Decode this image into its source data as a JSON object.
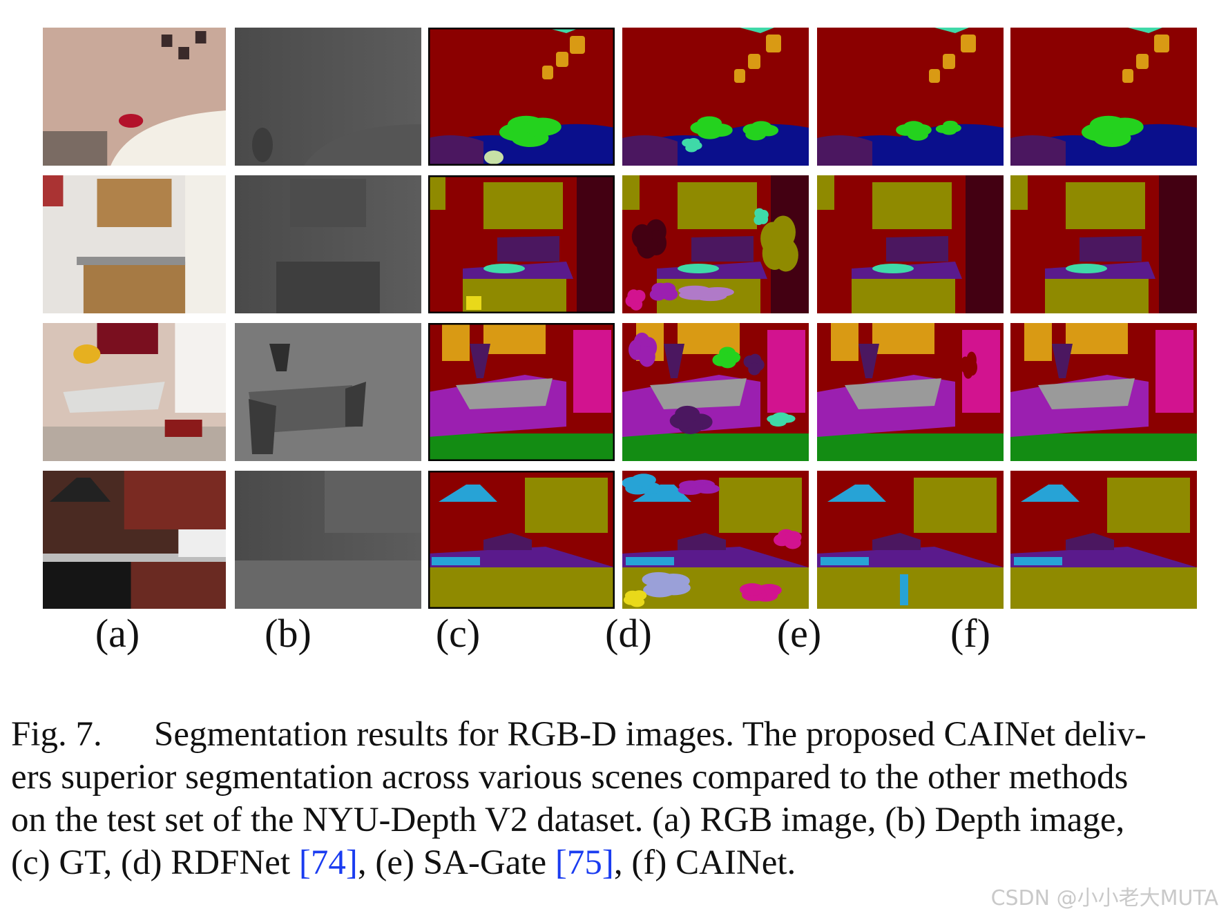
{
  "figure": {
    "column_labels": [
      "(a)",
      "(b)",
      "(c)",
      "(d)",
      "(e)",
      "(f)"
    ],
    "rows": [
      {
        "scene": "bedroom"
      },
      {
        "scene": "kitchenette"
      },
      {
        "scene": "dining room"
      },
      {
        "scene": "kitchen"
      }
    ],
    "palette": {
      "wall": "#8b0000",
      "cabinet": "#8f8a00",
      "bed": "#0a0f8c",
      "pillow": "#24d21e",
      "picture": "#d99a14",
      "floor": "#138c13",
      "chair": "#9b1fb0",
      "table": "#9a9a9a",
      "counter": "#5a1a8c",
      "objects": "#4b1760",
      "door": "#d2138f",
      "sink": "#27a3d6",
      "dark": "#430012",
      "teal": "#3fd9a8",
      "white": "#ffffff"
    }
  },
  "caption": {
    "label": "Fig. 7.",
    "lines": [
      "Segmentation results for RGB-D images. The proposed CAINet deliv-",
      "ers superior segmentation across various scenes compared to the other methods",
      "on the test set of the NYU-Depth V2 dataset. (a) RGB image, (b) Depth image,"
    ],
    "last_line": {
      "part1": "(c) GT, (d) RDFNet ",
      "ref1": "[74]",
      "part2": ", (e) SA-Gate ",
      "ref2": "[75]",
      "part3": ", (f) CAINet."
    }
  },
  "watermark": "CSDN @小小老大MUTA"
}
